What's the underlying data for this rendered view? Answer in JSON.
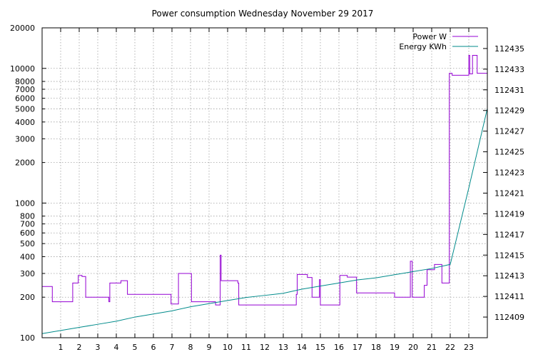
{
  "chart_data": {
    "type": "line",
    "title": "Power consumption Wednesday November 29 2017",
    "x_ticks": [
      1,
      2,
      3,
      4,
      5,
      6,
      7,
      8,
      9,
      10,
      11,
      12,
      13,
      14,
      15,
      16,
      17,
      18,
      19,
      20,
      21,
      22,
      23
    ],
    "xlim": [
      0,
      24
    ],
    "y_left": {
      "scale": "log",
      "ylim": [
        100,
        20000
      ],
      "ticks": [
        100,
        200,
        300,
        400,
        500,
        600,
        700,
        800,
        1000,
        2000,
        3000,
        4000,
        5000,
        6000,
        7000,
        8000,
        10000,
        20000
      ]
    },
    "y_right": {
      "scale": "linear",
      "ylim": [
        112407,
        112437
      ],
      "ticks": [
        112409,
        112411,
        112413,
        112415,
        112417,
        112419,
        112421,
        112423,
        112425,
        112427,
        112429,
        112431,
        112433,
        112435
      ]
    },
    "grid": true,
    "legend_position": "top-right",
    "series": [
      {
        "name": "Power W",
        "axis": "left",
        "color": "#9400d3",
        "step": true,
        "points": [
          [
            0,
            240
          ],
          [
            0.55,
            240
          ],
          [
            0.55,
            185
          ],
          [
            1.65,
            185
          ],
          [
            1.65,
            255
          ],
          [
            1.95,
            255
          ],
          [
            1.95,
            290
          ],
          [
            2.15,
            290
          ],
          [
            2.15,
            285
          ],
          [
            2.35,
            285
          ],
          [
            2.35,
            200
          ],
          [
            3.6,
            200
          ],
          [
            3.6,
            185
          ],
          [
            3.65,
            185
          ],
          [
            3.65,
            255
          ],
          [
            4.25,
            255
          ],
          [
            4.25,
            265
          ],
          [
            4.6,
            265
          ],
          [
            4.6,
            210
          ],
          [
            6.95,
            210
          ],
          [
            6.95,
            178
          ],
          [
            7.35,
            178
          ],
          [
            7.35,
            300
          ],
          [
            8.05,
            300
          ],
          [
            8.05,
            185
          ],
          [
            9.35,
            185
          ],
          [
            9.35,
            175
          ],
          [
            9.6,
            175
          ],
          [
            9.6,
            410
          ],
          [
            9.65,
            410
          ],
          [
            9.65,
            265
          ],
          [
            10.55,
            265
          ],
          [
            10.55,
            255
          ],
          [
            10.6,
            255
          ],
          [
            10.6,
            175
          ],
          [
            13.7,
            175
          ],
          [
            13.7,
            210
          ],
          [
            13.75,
            210
          ],
          [
            13.75,
            295
          ],
          [
            14.3,
            295
          ],
          [
            14.3,
            280
          ],
          [
            14.55,
            280
          ],
          [
            14.55,
            200
          ],
          [
            14.95,
            200
          ],
          [
            14.95,
            270
          ],
          [
            15.0,
            270
          ],
          [
            15.0,
            175
          ],
          [
            16.05,
            175
          ],
          [
            16.05,
            290
          ],
          [
            16.45,
            290
          ],
          [
            16.45,
            282
          ],
          [
            16.95,
            282
          ],
          [
            16.95,
            215
          ],
          [
            19.0,
            215
          ],
          [
            19.0,
            200
          ],
          [
            19.85,
            200
          ],
          [
            19.85,
            370
          ],
          [
            19.95,
            370
          ],
          [
            19.95,
            200
          ],
          [
            20.6,
            200
          ],
          [
            20.6,
            245
          ],
          [
            20.75,
            245
          ],
          [
            20.75,
            320
          ],
          [
            21.15,
            320
          ],
          [
            21.15,
            350
          ],
          [
            21.55,
            350
          ],
          [
            21.55,
            255
          ],
          [
            21.95,
            255
          ],
          [
            21.95,
            9200
          ],
          [
            22.1,
            9200
          ],
          [
            22.1,
            8900
          ],
          [
            23.0,
            8900
          ],
          [
            23.0,
            12500
          ],
          [
            23.05,
            12500
          ],
          [
            23.05,
            9100
          ],
          [
            23.2,
            9100
          ],
          [
            23.2,
            12500
          ],
          [
            23.45,
            12500
          ],
          [
            23.45,
            9200
          ],
          [
            24,
            9200
          ]
        ]
      },
      {
        "name": "Energy KWh",
        "axis": "right",
        "color": "#008b8b",
        "step": false,
        "points": [
          [
            0,
            112407.4
          ],
          [
            1,
            112407.7
          ],
          [
            2,
            112408.0
          ],
          [
            3,
            112408.3
          ],
          [
            4,
            112408.6
          ],
          [
            5,
            112409.0
          ],
          [
            6,
            112409.3
          ],
          [
            7,
            112409.6
          ],
          [
            8,
            112410.0
          ],
          [
            9,
            112410.3
          ],
          [
            10,
            112410.6
          ],
          [
            11,
            112410.9
          ],
          [
            12,
            112411.1
          ],
          [
            13,
            112411.3
          ],
          [
            14,
            112411.7
          ],
          [
            15,
            112412.0
          ],
          [
            16,
            112412.3
          ],
          [
            17,
            112412.6
          ],
          [
            18,
            112412.8
          ],
          [
            19,
            112413.1
          ],
          [
            20,
            112413.4
          ],
          [
            21,
            112413.7
          ],
          [
            22,
            112414.1
          ],
          [
            23,
            112421.5
          ],
          [
            24,
            112429.2
          ]
        ]
      }
    ]
  }
}
